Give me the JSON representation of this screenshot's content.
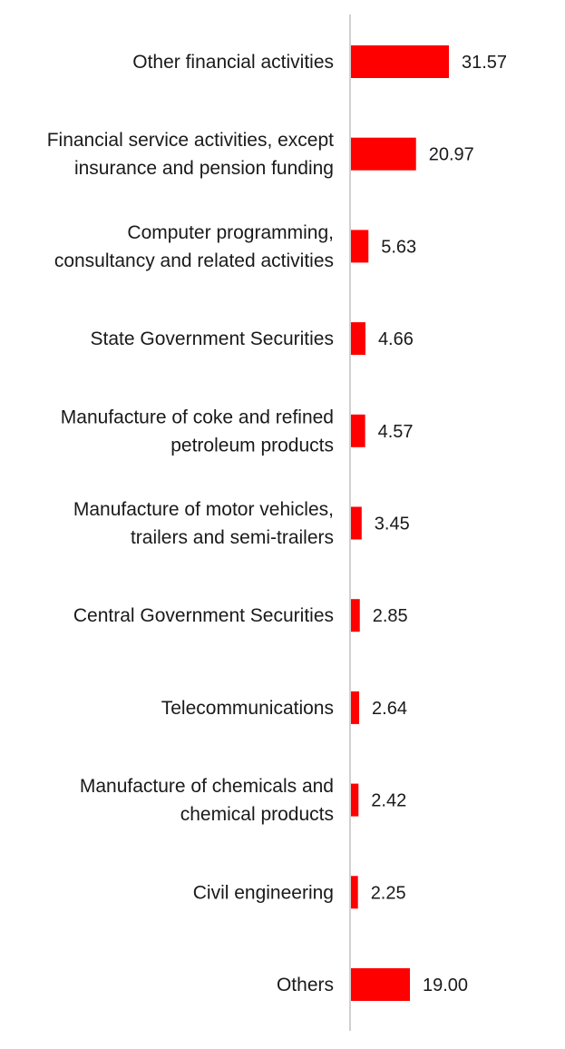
{
  "chart_data": {
    "type": "bar",
    "orientation": "horizontal",
    "title": "",
    "xlabel": "",
    "ylabel": "",
    "xlim": [
      0,
      31.57
    ],
    "grid": false,
    "bar_color": "#ff0000",
    "axis_color": "#d0d0d0",
    "categories": [
      [
        "Other financial activities"
      ],
      [
        "Financial service activities, except",
        "insurance and pension funding"
      ],
      [
        "Computer programming,",
        "consultancy and related activities"
      ],
      [
        "State Government Securities"
      ],
      [
        "Manufacture of coke and refined",
        "petroleum products"
      ],
      [
        "Manufacture of motor vehicles,",
        "trailers and semi-trailers"
      ],
      [
        "Central Government Securities"
      ],
      [
        "Telecommunications"
      ],
      [
        "Manufacture of chemicals and",
        "chemical products"
      ],
      [
        "Civil engineering"
      ],
      [
        "Others"
      ]
    ],
    "values": [
      31.57,
      20.97,
      5.63,
      4.66,
      4.57,
      3.45,
      2.85,
      2.64,
      2.42,
      2.25,
      19.0
    ],
    "value_labels": [
      "31.57",
      "20.97",
      "5.63",
      "4.66",
      "4.57",
      "3.45",
      "2.85",
      "2.64",
      "2.42",
      "2.25",
      "19.00"
    ]
  }
}
